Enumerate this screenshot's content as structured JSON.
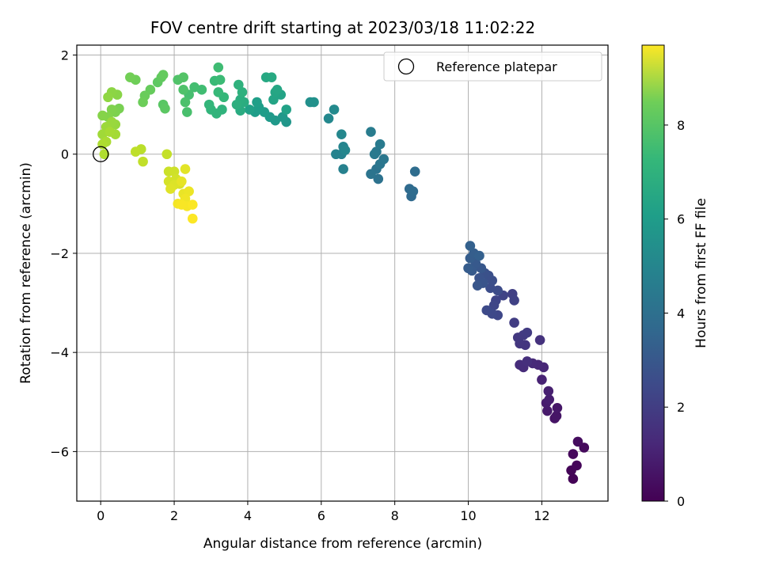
{
  "chart_data": {
    "type": "scatter",
    "title": "FOV centre drift starting at 2023/03/18 11:02:22",
    "xlabel": "Angular distance from reference (arcmin)",
    "ylabel": "Rotation from reference (arcmin)",
    "xlim": [
      -0.65,
      13.8
    ],
    "ylim": [
      -7.0,
      2.2
    ],
    "xticks": [
      0,
      2,
      4,
      6,
      8,
      10,
      12
    ],
    "yticks": [
      -6,
      -4,
      -2,
      0,
      2
    ],
    "grid": true,
    "colormap": "viridis",
    "colorbar": {
      "label": "Hours from first FF file",
      "range": [
        0,
        9.7
      ],
      "ticks": [
        0,
        2,
        4,
        6,
        8
      ]
    },
    "legend": {
      "position": "top-right",
      "entries": [
        "Reference platepar"
      ]
    },
    "reference_point": {
      "x": 0,
      "y": 0
    },
    "series": [
      {
        "points": [
          [
            12.85,
            -6.55,
            0.05
          ],
          [
            12.8,
            -6.38,
            0.1
          ],
          [
            12.95,
            -6.28,
            0.15
          ],
          [
            12.85,
            -6.05,
            0.2
          ],
          [
            13.15,
            -5.92,
            0.25
          ],
          [
            12.98,
            -5.8,
            0.3
          ],
          [
            12.35,
            -5.33,
            0.5
          ],
          [
            12.4,
            -5.28,
            0.55
          ],
          [
            12.42,
            -5.12,
            0.6
          ],
          [
            12.15,
            -5.18,
            0.7
          ],
          [
            12.12,
            -5.02,
            0.75
          ],
          [
            12.2,
            -4.95,
            0.8
          ],
          [
            12.18,
            -4.78,
            0.85
          ],
          [
            12.0,
            -4.55,
            0.95
          ],
          [
            12.05,
            -4.3,
            1.05
          ],
          [
            11.9,
            -4.25,
            1.1
          ],
          [
            11.75,
            -4.22,
            1.15
          ],
          [
            11.5,
            -4.3,
            1.2
          ],
          [
            11.4,
            -4.25,
            1.25
          ],
          [
            11.6,
            -4.18,
            1.3
          ],
          [
            11.95,
            -3.75,
            1.4
          ],
          [
            11.55,
            -3.85,
            1.5
          ],
          [
            11.4,
            -3.82,
            1.55
          ],
          [
            11.35,
            -3.7,
            1.6
          ],
          [
            11.5,
            -3.65,
            1.65
          ],
          [
            11.6,
            -3.6,
            1.7
          ],
          [
            11.25,
            -3.4,
            1.75
          ],
          [
            11.2,
            -2.82,
            1.85
          ],
          [
            11.25,
            -2.95,
            1.9
          ],
          [
            10.95,
            -2.85,
            1.95
          ],
          [
            10.75,
            -2.95,
            2.0
          ],
          [
            10.7,
            -3.05,
            2.05
          ],
          [
            10.8,
            -3.25,
            2.1
          ],
          [
            10.65,
            -3.22,
            2.15
          ],
          [
            10.5,
            -3.15,
            2.2
          ],
          [
            10.8,
            -2.75,
            2.25
          ],
          [
            10.6,
            -2.7,
            2.3
          ],
          [
            10.65,
            -2.55,
            2.35
          ],
          [
            10.55,
            -2.45,
            2.4
          ],
          [
            10.45,
            -2.4,
            2.45
          ],
          [
            10.3,
            -2.5,
            2.5
          ],
          [
            10.4,
            -2.6,
            2.55
          ],
          [
            10.25,
            -2.65,
            2.6
          ],
          [
            10.35,
            -2.3,
            2.65
          ],
          [
            10.2,
            -2.2,
            2.7
          ],
          [
            10.1,
            -2.35,
            2.75
          ],
          [
            10.0,
            -2.3,
            2.8
          ],
          [
            10.05,
            -2.1,
            2.85
          ],
          [
            10.15,
            -2.0,
            2.9
          ],
          [
            10.3,
            -2.05,
            2.95
          ],
          [
            10.05,
            -1.85,
            3.0
          ],
          [
            8.45,
            -0.85,
            3.3
          ],
          [
            8.4,
            -0.7,
            3.35
          ],
          [
            8.5,
            -0.75,
            3.4
          ],
          [
            8.55,
            -0.35,
            3.45
          ],
          [
            7.55,
            -0.5,
            3.65
          ],
          [
            7.5,
            -0.3,
            3.7
          ],
          [
            7.35,
            -0.4,
            3.75
          ],
          [
            7.6,
            -0.2,
            3.8
          ],
          [
            7.7,
            -0.1,
            3.85
          ],
          [
            7.5,
            0.05,
            3.9
          ],
          [
            7.45,
            0.0,
            3.95
          ],
          [
            7.6,
            0.2,
            4.0
          ],
          [
            7.35,
            0.45,
            4.05
          ],
          [
            6.6,
            -0.3,
            4.25
          ],
          [
            6.55,
            0.0,
            4.3
          ],
          [
            6.4,
            0.0,
            4.35
          ],
          [
            6.6,
            0.15,
            4.4
          ],
          [
            6.65,
            0.08,
            4.45
          ],
          [
            6.55,
            0.4,
            4.5
          ],
          [
            6.2,
            0.72,
            4.55
          ],
          [
            6.35,
            0.9,
            4.6
          ],
          [
            5.7,
            1.05,
            4.85
          ],
          [
            5.8,
            1.05,
            4.9
          ],
          [
            5.05,
            0.65,
            5.1
          ],
          [
            4.95,
            0.75,
            5.15
          ],
          [
            4.75,
            0.68,
            5.2
          ],
          [
            4.6,
            0.75,
            5.25
          ],
          [
            4.45,
            0.85,
            5.3
          ],
          [
            4.2,
            0.85,
            5.35
          ],
          [
            4.3,
            0.95,
            5.4
          ],
          [
            4.25,
            1.05,
            5.45
          ],
          [
            4.05,
            0.9,
            5.5
          ],
          [
            5.05,
            0.9,
            5.55
          ],
          [
            4.9,
            1.2,
            5.6
          ],
          [
            4.7,
            1.1,
            5.65
          ],
          [
            4.75,
            1.25,
            5.7
          ],
          [
            4.8,
            1.3,
            5.75
          ],
          [
            4.5,
            1.55,
            5.8
          ],
          [
            4.65,
            1.55,
            5.85
          ],
          [
            3.8,
            0.88,
            5.95
          ],
          [
            3.9,
            1.05,
            6.0
          ],
          [
            3.8,
            1.1,
            6.05
          ],
          [
            3.7,
            1.0,
            6.1
          ],
          [
            3.85,
            1.25,
            6.15
          ],
          [
            3.75,
            1.4,
            6.2
          ],
          [
            3.3,
            0.9,
            6.25
          ],
          [
            3.15,
            0.82,
            6.3
          ],
          [
            3.0,
            0.9,
            6.35
          ],
          [
            2.95,
            1.0,
            6.4
          ],
          [
            3.35,
            1.15,
            6.45
          ],
          [
            3.2,
            1.25,
            6.5
          ],
          [
            3.1,
            1.48,
            6.55
          ],
          [
            3.25,
            1.5,
            6.6
          ],
          [
            3.2,
            1.75,
            6.65
          ],
          [
            2.75,
            1.3,
            6.7
          ],
          [
            2.55,
            1.35,
            6.75
          ],
          [
            2.4,
            1.2,
            6.8
          ],
          [
            2.35,
            0.85,
            6.85
          ],
          [
            2.3,
            1.05,
            6.9
          ],
          [
            2.25,
            1.3,
            6.95
          ],
          [
            2.1,
            1.5,
            7.0
          ],
          [
            2.25,
            1.55,
            7.05
          ],
          [
            1.7,
            1.0,
            7.15
          ],
          [
            1.75,
            0.92,
            7.2
          ],
          [
            1.55,
            1.45,
            7.25
          ],
          [
            1.65,
            1.55,
            7.3
          ],
          [
            1.7,
            1.6,
            7.35
          ],
          [
            1.35,
            1.3,
            7.4
          ],
          [
            1.2,
            1.18,
            7.45
          ],
          [
            1.15,
            1.05,
            7.5
          ],
          [
            0.95,
            1.5,
            7.55
          ],
          [
            0.8,
            1.55,
            7.6
          ],
          [
            0.5,
            0.92,
            7.7
          ],
          [
            0.4,
            0.85,
            7.75
          ],
          [
            0.3,
            0.9,
            7.8
          ],
          [
            0.2,
            0.75,
            7.85
          ],
          [
            0.05,
            0.78,
            7.9
          ],
          [
            0.45,
            1.2,
            7.95
          ],
          [
            0.3,
            1.25,
            8.0
          ],
          [
            0.2,
            1.15,
            8.05
          ],
          [
            0.4,
            0.6,
            8.15
          ],
          [
            0.3,
            0.65,
            8.2
          ],
          [
            0.15,
            0.55,
            8.25
          ],
          [
            0.05,
            0.4,
            8.3
          ],
          [
            0.4,
            0.4,
            8.35
          ],
          [
            0.25,
            0.45,
            8.4
          ],
          [
            0.15,
            0.25,
            8.45
          ],
          [
            0.05,
            0.2,
            8.5
          ],
          [
            0.1,
            0.0,
            8.55
          ],
          [
            1.1,
            0.1,
            8.7
          ],
          [
            0.95,
            0.05,
            8.75
          ],
          [
            1.15,
            -0.15,
            8.8
          ],
          [
            1.8,
            0.0,
            8.85
          ],
          [
            1.85,
            -0.35,
            8.95
          ],
          [
            2.0,
            -0.35,
            9.0
          ],
          [
            2.05,
            -0.5,
            9.05
          ],
          [
            1.85,
            -0.55,
            9.1
          ],
          [
            2.15,
            -0.6,
            9.15
          ],
          [
            2.0,
            -0.62,
            9.2
          ],
          [
            1.9,
            -0.7,
            9.25
          ],
          [
            2.3,
            -0.3,
            9.3
          ],
          [
            2.2,
            -0.55,
            9.35
          ],
          [
            2.25,
            -0.8,
            9.4
          ],
          [
            2.4,
            -0.75,
            9.45
          ],
          [
            2.3,
            -0.9,
            9.5
          ],
          [
            2.1,
            -1.0,
            9.55
          ],
          [
            2.35,
            -1.05,
            9.6
          ],
          [
            2.2,
            -1.02,
            9.62
          ],
          [
            2.5,
            -1.02,
            9.65
          ],
          [
            2.5,
            -1.3,
            9.68
          ]
        ]
      }
    ]
  }
}
